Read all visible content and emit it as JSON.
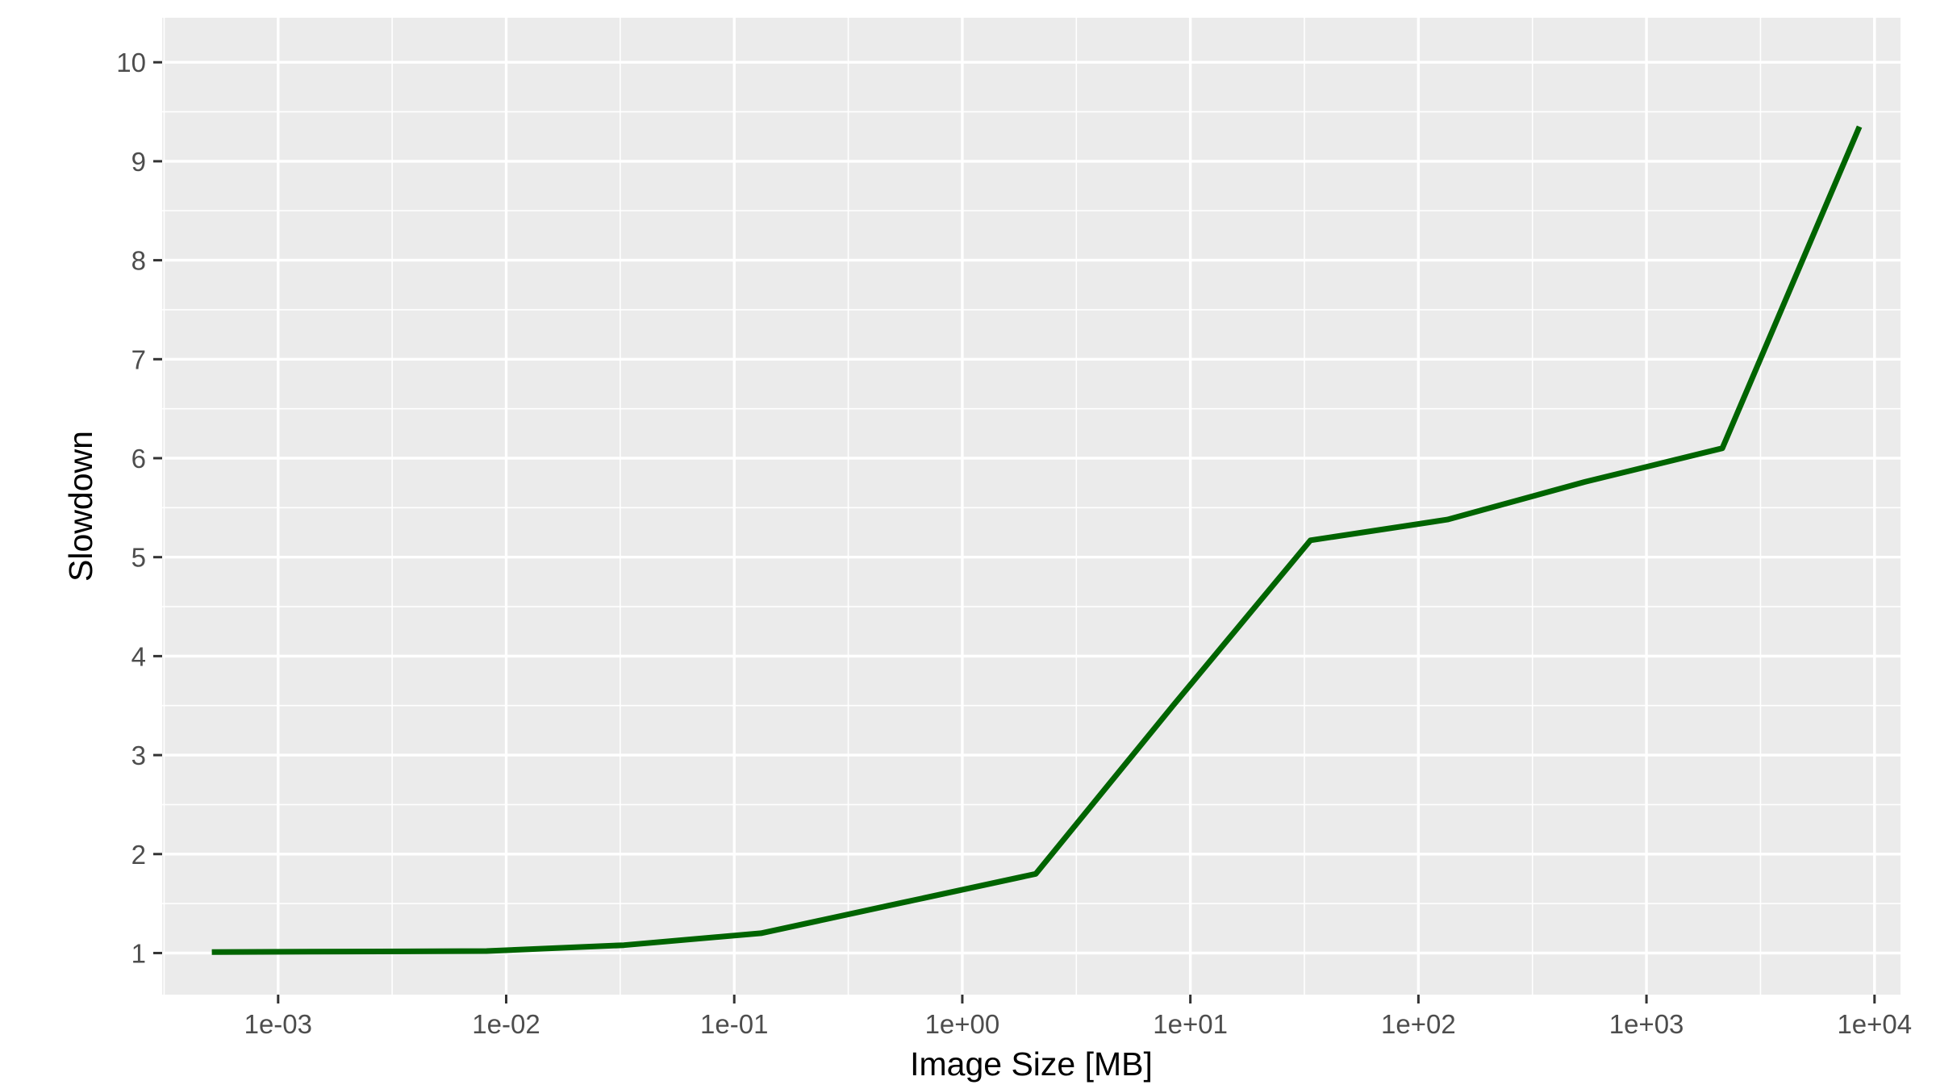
{
  "chart_data": {
    "type": "line",
    "title": "",
    "xlabel": "Image Size [MB]",
    "ylabel": "Slowdown",
    "x_scale": "log10",
    "xlim": [
      0.00031,
      13000
    ],
    "ylim": [
      0.58,
      10.45
    ],
    "x_ticks": [
      0.001,
      0.01,
      0.1,
      1,
      10,
      100,
      1000,
      10000
    ],
    "x_tick_labels": [
      "1e-03",
      "1e-02",
      "1e-01",
      "1e+00",
      "1e+01",
      "1e+02",
      "1e+03",
      "1e+04"
    ],
    "y_ticks": [
      1,
      2,
      3,
      4,
      5,
      6,
      7,
      8,
      9,
      10
    ],
    "y_tick_labels": [
      "1",
      "2",
      "3",
      "4",
      "5",
      "6",
      "7",
      "8",
      "9",
      "10"
    ],
    "grid": true,
    "panel_background": "#ebebeb",
    "grid_color": "#ffffff",
    "series": [
      {
        "color": "#006400",
        "x": [
          0.000512,
          0.00205,
          0.0082,
          0.0328,
          0.131,
          0.524,
          2.1,
          8.4,
          33.6,
          134,
          537,
          2150,
          8590
        ],
        "y": [
          1.01,
          1.015,
          1.02,
          1.08,
          1.2,
          1.5,
          1.8,
          3.5,
          5.17,
          5.38,
          5.76,
          6.1,
          9.35
        ]
      }
    ]
  }
}
